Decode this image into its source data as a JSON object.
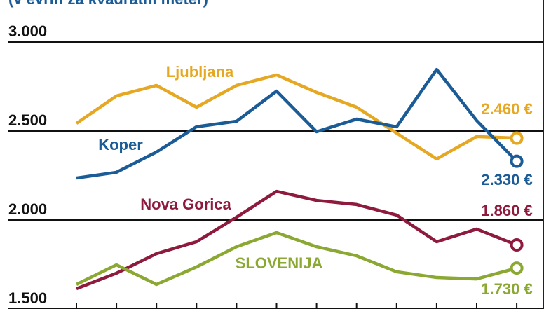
{
  "chart_data": {
    "type": "line",
    "subtitle": "(v evrih za kvadratni meter)",
    "categories": [
      null,
      null,
      null,
      null,
      null,
      null,
      null,
      null,
      null,
      null,
      null,
      null
    ],
    "ylim": [
      1500,
      3000
    ],
    "yticks": [
      {
        "value": 1500,
        "label": "1.500"
      },
      {
        "value": 2000,
        "label": "2.000"
      },
      {
        "value": 2500,
        "label": "2.500"
      },
      {
        "value": 3000,
        "label": "3.000"
      }
    ],
    "grid": true,
    "series": [
      {
        "name": "Ljubljana",
        "color": "#e6a823",
        "values": [
          2543,
          2697,
          2756,
          2634,
          2756,
          2815,
          2717,
          2634,
          2488,
          2343,
          2469,
          2460
        ],
        "value_labels": [
          null,
          null,
          null,
          null,
          null,
          null,
          null,
          null,
          null,
          null,
          null,
          "2.460 €"
        ]
      },
      {
        "name": "Koper",
        "color": "#1b5b96",
        "values": [
          2236,
          2268,
          2382,
          2524,
          2555,
          2724,
          2496,
          2567,
          2524,
          2846,
          2559,
          2330
        ],
        "value_labels": [
          null,
          null,
          null,
          null,
          null,
          null,
          null,
          null,
          null,
          null,
          null,
          "2.330 €"
        ]
      },
      {
        "name": "Nova Gorica",
        "color": "#8e1b3d",
        "values": [
          1614,
          1701,
          1811,
          1878,
          2016,
          2161,
          2110,
          2087,
          2028,
          1878,
          1949,
          1860
        ],
        "value_labels": [
          null,
          null,
          null,
          null,
          null,
          null,
          null,
          null,
          null,
          null,
          null,
          "1.860 €"
        ]
      },
      {
        "name": "SLOVENIJA",
        "color": "#8aa832",
        "values": [
          1638,
          1748,
          1638,
          1736,
          1850,
          1929,
          1850,
          1799,
          1709,
          1677,
          1669,
          1730
        ],
        "value_labels": [
          null,
          null,
          null,
          null,
          null,
          null,
          null,
          null,
          null,
          null,
          null,
          "1.730 €"
        ]
      }
    ]
  }
}
